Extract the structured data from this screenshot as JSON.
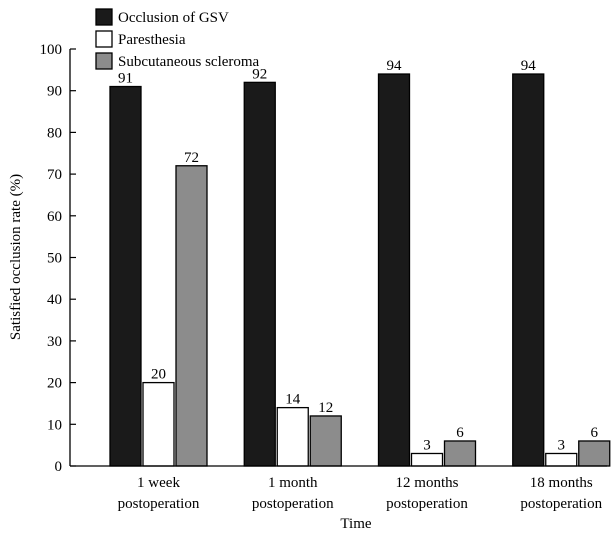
{
  "chart_data": {
    "type": "bar",
    "xlabel": "Time",
    "ylabel": "Satisfied occlusion rate (%)",
    "ylim": [
      0,
      100
    ],
    "yticks": [
      0,
      10,
      20,
      30,
      40,
      50,
      60,
      70,
      80,
      90,
      100
    ],
    "grid": false,
    "legend_position": "top-left",
    "categories": [
      {
        "line1": "1 week",
        "line2": "postoperation"
      },
      {
        "line1": "1 month",
        "line2": "postoperation"
      },
      {
        "line1": "12 months",
        "line2": "postoperation"
      },
      {
        "line1": "18 months",
        "line2": "postoperation"
      }
    ],
    "series": [
      {
        "name": "Occlusion of GSV",
        "color": "#1a1a1a",
        "values": [
          91,
          92,
          94,
          94
        ]
      },
      {
        "name": "Paresthesia",
        "color": "#ffffff",
        "values": [
          20,
          14,
          3,
          3
        ]
      },
      {
        "name": "Subcutaneous scleroma",
        "color": "#8c8c8c",
        "values": [
          72,
          12,
          6,
          6
        ]
      }
    ]
  }
}
